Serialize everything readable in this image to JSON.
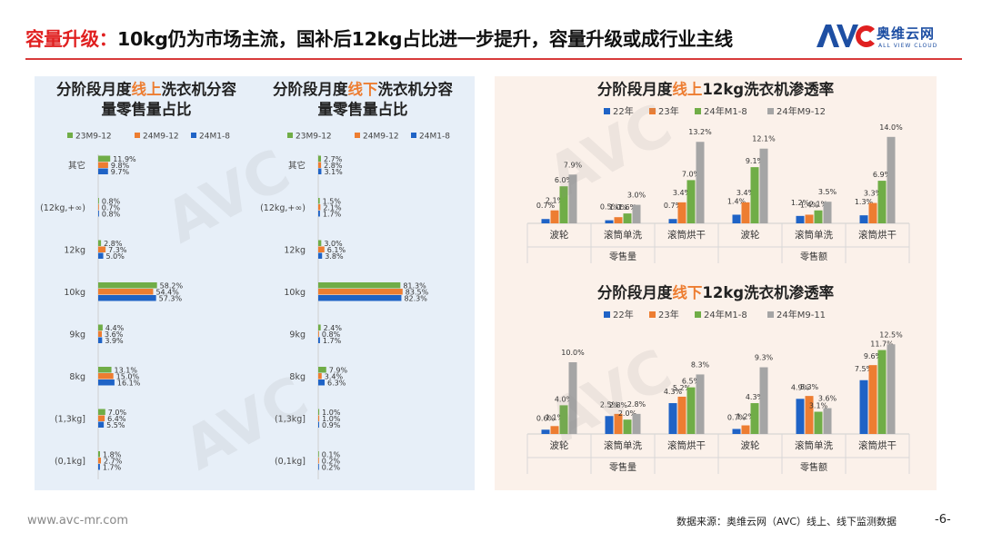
{
  "header": {
    "lead": "容量升级：",
    "title": "10kg仍为市场主流，国补后12kg占比进一步提升，容量升级或成行业主线"
  },
  "logo": {
    "name_cn": "奥维云网",
    "name_en": "ALL VIEW CLOUD",
    "mark": "AVC"
  },
  "footer": {
    "url": "www.avc-mr.com",
    "source": "数据来源：奥维云网（AVC）线上、线下监测数据",
    "page": "-6-"
  },
  "colors": {
    "blue": "#1f63c6",
    "orange": "#ed7d31",
    "green": "#70ad47",
    "gray": "#a5a5a5",
    "accent": "#e02020"
  },
  "chart_data": [
    {
      "type": "bar",
      "orientation": "horizontal",
      "title_parts": [
        "分阶段月度",
        "线上",
        "洗衣机分容",
        "量零售量占比"
      ],
      "categories": [
        "其它",
        "(12kg,+∞)",
        "12kg",
        "10kg",
        "9kg",
        "8kg",
        "(1,3kg]",
        "(0,1kg]"
      ],
      "unit": "%",
      "series": [
        {
          "name": "23M9-12",
          "color": "#70ad47",
          "values": [
            11.9,
            0.8,
            2.8,
            58.2,
            4.4,
            13.1,
            7.0,
            1.8
          ]
        },
        {
          "name": "24M9-12",
          "color": "#ed7d31",
          "values": [
            9.8,
            0.7,
            7.3,
            54.4,
            3.6,
            15.0,
            6.4,
            2.7
          ]
        },
        {
          "name": "24M1-8",
          "color": "#1f63c6",
          "values": [
            9.7,
            0.8,
            5.0,
            57.3,
            3.9,
            16.1,
            5.5,
            1.7
          ]
        }
      ]
    },
    {
      "type": "bar",
      "orientation": "horizontal",
      "title_parts": [
        "分阶段月度",
        "线下",
        "洗衣机分容",
        "量零售量占比"
      ],
      "categories": [
        "其它",
        "(12kg,+∞)",
        "12kg",
        "10kg",
        "9kg",
        "8kg",
        "(1,3kg]",
        "(0,1kg]"
      ],
      "unit": "%",
      "series": [
        {
          "name": "23M9-12",
          "color": "#70ad47",
          "values": [
            2.7,
            1.5,
            3.0,
            81.3,
            2.4,
            7.9,
            1.0,
            0.1
          ]
        },
        {
          "name": "24M9-12",
          "color": "#ed7d31",
          "values": [
            2.8,
            2.1,
            6.1,
            83.5,
            0.8,
            3.4,
            1.0,
            0.2
          ]
        },
        {
          "name": "24M1-8",
          "color": "#1f63c6",
          "values": [
            3.1,
            1.7,
            3.8,
            82.3,
            1.7,
            6.3,
            0.9,
            0.2
          ]
        }
      ]
    },
    {
      "type": "bar",
      "orientation": "vertical",
      "title_parts": [
        "分阶段月度",
        "线上",
        "12kg洗衣机渗透率",
        ""
      ],
      "categories": [
        "波轮",
        "滚筒单洗",
        "滚筒烘干",
        "波轮",
        "滚筒单洗",
        "滚筒烘干"
      ],
      "groups": [
        {
          "label": "零售量",
          "span": 3
        },
        {
          "label": "零售额",
          "span": 3
        }
      ],
      "unit": "%",
      "ymax": 14.0,
      "series": [
        {
          "name": "22年",
          "color": "#1f63c6",
          "values": [
            0.7,
            0.5,
            0.7,
            1.4,
            1.2,
            1.3
          ]
        },
        {
          "name": "23年",
          "color": "#ed7d31",
          "values": [
            2.1,
            1.0,
            3.4,
            3.4,
            1.4,
            3.3
          ]
        },
        {
          "name": "24年M1-8",
          "color": "#70ad47",
          "values": [
            6.0,
            1.6,
            7.0,
            9.1,
            2.1,
            6.9
          ]
        },
        {
          "name": "24年M9-12",
          "color": "#a5a5a5",
          "values": [
            7.9,
            3.0,
            13.2,
            12.1,
            3.5,
            14.0
          ]
        }
      ]
    },
    {
      "type": "bar",
      "orientation": "vertical",
      "title_parts": [
        "分阶段月度",
        "线下",
        "12kg洗衣机渗透率",
        ""
      ],
      "categories": [
        "波轮",
        "滚筒单洗",
        "滚筒烘干",
        "波轮",
        "滚筒单洗",
        "滚筒烘干"
      ],
      "groups": [
        {
          "label": "零售量",
          "span": 3
        },
        {
          "label": "零售额",
          "span": 3
        }
      ],
      "unit": "%",
      "ymax": 12.5,
      "series": [
        {
          "name": "22年",
          "color": "#1f63c6",
          "values": [
            0.6,
            2.5,
            4.3,
            0.7,
            4.9,
            7.5
          ]
        },
        {
          "name": "23年",
          "color": "#ed7d31",
          "values": [
            1.1,
            2.8,
            5.2,
            1.2,
            5.3,
            9.6
          ]
        },
        {
          "name": "24年M1-8",
          "color": "#70ad47",
          "values": [
            4.0,
            2.0,
            6.5,
            4.3,
            3.1,
            11.7
          ]
        },
        {
          "name": "24年M9-11",
          "color": "#a5a5a5",
          "values": [
            10.0,
            2.8,
            8.3,
            9.3,
            3.6,
            12.5
          ]
        }
      ]
    }
  ]
}
